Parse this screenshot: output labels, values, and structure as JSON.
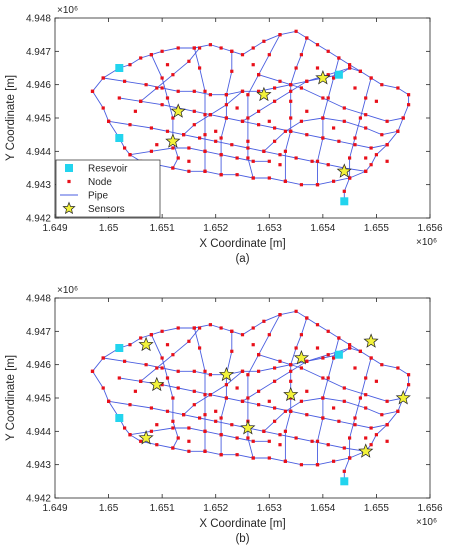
{
  "chart_data": [
    {
      "type": "scatter",
      "title": "",
      "caption": "(a)",
      "xlabel": "X Coordinate [m]",
      "ylabel": "Y Coordinate [m]",
      "x_exponent": "×10⁶",
      "y_exponent": "×10⁶",
      "xlim": [
        1.649,
        1.656
      ],
      "ylim": [
        4.942,
        4.948
      ],
      "x_ticks": [
        "1.649",
        "1.65",
        "1.651",
        "1.652",
        "1.653",
        "1.654",
        "1.655",
        "1.656"
      ],
      "y_ticks": [
        "4.942",
        "4.943",
        "4.944",
        "4.945",
        "4.946",
        "4.947",
        "4.948"
      ],
      "grid": false,
      "legend_position": "bottom-left",
      "legend": [
        {
          "label": "Resevoir",
          "marker": "square",
          "color": "#22d4ee"
        },
        {
          "label": "Node",
          "marker": "dot",
          "color": "#e8101a"
        },
        {
          "label": "Pipe",
          "marker": "line",
          "color": "#4a5ee0"
        },
        {
          "label": "Sensors",
          "marker": "star",
          "color": "#f2f23a"
        }
      ],
      "reservoirs": [
        [
          1.6502,
          4.9465
        ],
        [
          1.6502,
          4.9444
        ],
        [
          1.6543,
          4.9463
        ],
        [
          1.6544,
          4.9425
        ]
      ],
      "sensors": [
        [
          1.6513,
          4.9452
        ],
        [
          1.6512,
          4.9443
        ],
        [
          1.6529,
          4.9457
        ],
        [
          1.654,
          4.9462
        ],
        [
          1.6544,
          4.9434
        ]
      ]
    },
    {
      "type": "scatter",
      "title": "",
      "caption": "(b)",
      "xlabel": "X Coordinate [m]",
      "ylabel": "Y Coordinate [m]",
      "x_exponent": "×10⁶",
      "y_exponent": "×10⁶",
      "xlim": [
        1.649,
        1.656
      ],
      "ylim": [
        4.942,
        4.948
      ],
      "x_ticks": [
        "1.649",
        "1.65",
        "1.651",
        "1.652",
        "1.653",
        "1.654",
        "1.655",
        "1.656"
      ],
      "y_ticks": [
        "4.942",
        "4.943",
        "4.944",
        "4.945",
        "4.946",
        "4.947",
        "4.948"
      ],
      "grid": false,
      "reservoirs": [
        [
          1.6502,
          4.9465
        ],
        [
          1.6502,
          4.9444
        ],
        [
          1.6543,
          4.9463
        ],
        [
          1.6544,
          4.9425
        ]
      ],
      "sensors": [
        [
          1.6507,
          4.9466
        ],
        [
          1.6509,
          4.9454
        ],
        [
          1.6507,
          4.9438
        ],
        [
          1.6522,
          4.9457
        ],
        [
          1.6526,
          4.9441
        ],
        [
          1.6534,
          4.9451
        ],
        [
          1.6536,
          4.9462
        ],
        [
          1.6549,
          4.9467
        ],
        [
          1.6555,
          4.945
        ],
        [
          1.6548,
          4.9434
        ]
      ]
    }
  ],
  "network": {
    "lines": [
      [
        [
          1.6497,
          4.9458
        ],
        [
          1.6499,
          4.9462
        ],
        [
          1.6502,
          4.9465
        ],
        [
          1.6504,
          4.9466
        ],
        [
          1.6506,
          4.9468
        ],
        [
          1.6508,
          4.9469
        ],
        [
          1.651,
          4.947
        ],
        [
          1.6513,
          4.9471
        ],
        [
          1.6516,
          4.9471
        ],
        [
          1.6519,
          4.9472
        ],
        [
          1.6521,
          4.9471
        ],
        [
          1.6523,
          4.947
        ],
        [
          1.6525,
          4.9469
        ],
        [
          1.6527,
          4.9471
        ],
        [
          1.6529,
          4.9473
        ],
        [
          1.6532,
          4.9475
        ],
        [
          1.6535,
          4.9476
        ],
        [
          1.6537,
          4.9474
        ],
        [
          1.6539,
          4.9472
        ],
        [
          1.6541,
          4.947
        ],
        [
          1.6543,
          4.9468
        ],
        [
          1.6545,
          4.9466
        ],
        [
          1.6547,
          4.9464
        ],
        [
          1.6549,
          4.9462
        ],
        [
          1.6551,
          4.946
        ],
        [
          1.6554,
          4.9459
        ],
        [
          1.6556,
          4.9457
        ],
        [
          1.6556,
          4.9454
        ],
        [
          1.6555,
          4.945
        ],
        [
          1.6554,
          4.9446
        ],
        [
          1.6552,
          4.9442
        ],
        [
          1.655,
          4.9439
        ],
        [
          1.6549,
          4.9436
        ],
        [
          1.6548,
          4.9434
        ],
        [
          1.6545,
          4.9432
        ],
        [
          1.6542,
          4.9431
        ],
        [
          1.6539,
          4.943
        ],
        [
          1.6536,
          4.943
        ],
        [
          1.6533,
          4.9431
        ],
        [
          1.653,
          4.9432
        ],
        [
          1.6527,
          4.9432
        ],
        [
          1.6524,
          4.9433
        ],
        [
          1.6521,
          4.9433
        ],
        [
          1.6518,
          4.9434
        ],
        [
          1.6515,
          4.9434
        ],
        [
          1.6512,
          4.9435
        ],
        [
          1.6509,
          4.9436
        ],
        [
          1.6506,
          4.9437
        ],
        [
          1.6504,
          4.9439
        ],
        [
          1.6503,
          4.9441
        ],
        [
          1.6502,
          4.9444
        ]
      ],
      [
        [
          1.6497,
          4.9458
        ],
        [
          1.6499,
          4.9453
        ],
        [
          1.65,
          4.9449
        ],
        [
          1.6502,
          4.9444
        ]
      ],
      [
        [
          1.6502,
          4.9456
        ],
        [
          1.6506,
          4.9455
        ],
        [
          1.651,
          4.9454
        ],
        [
          1.6513,
          4.9453
        ],
        [
          1.6516,
          4.9452
        ],
        [
          1.6519,
          4.9451
        ],
        [
          1.6522,
          4.945
        ],
        [
          1.6525,
          4.9449
        ],
        [
          1.6528,
          4.9448
        ],
        [
          1.6531,
          4.9447
        ],
        [
          1.6534,
          4.9446
        ],
        [
          1.6537,
          4.9445
        ],
        [
          1.654,
          4.9444
        ],
        [
          1.6543,
          4.9443
        ],
        [
          1.6546,
          4.9442
        ],
        [
          1.6549,
          4.9441
        ],
        [
          1.6552,
          4.9442
        ]
      ],
      [
        [
          1.6499,
          4.9462
        ],
        [
          1.6503,
          4.9461
        ],
        [
          1.6507,
          4.946
        ],
        [
          1.651,
          4.9459
        ],
        [
          1.6513,
          4.9458
        ],
        [
          1.6516,
          4.9458
        ],
        [
          1.6519,
          4.9457
        ],
        [
          1.6522,
          4.9457
        ],
        [
          1.6525,
          4.9458
        ],
        [
          1.6528,
          4.9458
        ],
        [
          1.6531,
          4.9459
        ],
        [
          1.6534,
          4.946
        ],
        [
          1.6537,
          4.9461
        ],
        [
          1.654,
          4.9462
        ],
        [
          1.6543,
          4.9463
        ],
        [
          1.6545,
          4.9465
        ],
        [
          1.6547,
          4.9464
        ]
      ],
      [
        [
          1.65,
          4.9449
        ],
        [
          1.6504,
          4.9448
        ],
        [
          1.6508,
          4.9447
        ],
        [
          1.6511,
          4.9446
        ],
        [
          1.6514,
          4.9445
        ],
        [
          1.6517,
          4.9444
        ],
        [
          1.652,
          4.9443
        ],
        [
          1.6523,
          4.9442
        ],
        [
          1.6526,
          4.9441
        ],
        [
          1.6529,
          4.944
        ],
        [
          1.6532,
          4.9439
        ],
        [
          1.6535,
          4.9438
        ],
        [
          1.6538,
          4.9437
        ],
        [
          1.6541,
          4.9436
        ],
        [
          1.6544,
          4.9435
        ],
        [
          1.6548,
          4.9434
        ]
      ],
      [
        [
          1.6504,
          4.9439
        ],
        [
          1.6508,
          4.944
        ],
        [
          1.6512,
          4.9441
        ],
        [
          1.6515,
          4.9441
        ],
        [
          1.6518,
          4.944
        ],
        [
          1.6521,
          4.9439
        ],
        [
          1.6524,
          4.9438
        ],
        [
          1.6527,
          4.9437
        ],
        [
          1.653,
          4.9437
        ]
      ],
      [
        [
          1.6508,
          4.9469
        ],
        [
          1.651,
          4.9462
        ],
        [
          1.6511,
          4.9456
        ],
        [
          1.6512,
          4.945
        ],
        [
          1.6512,
          4.9443
        ],
        [
          1.6513,
          4.9438
        ],
        [
          1.6512,
          4.9435
        ]
      ],
      [
        [
          1.6516,
          4.9471
        ],
        [
          1.6517,
          4.9465
        ],
        [
          1.6518,
          4.9458
        ],
        [
          1.6518,
          4.9451
        ],
        [
          1.6518,
          4.9445
        ],
        [
          1.6518,
          4.944
        ],
        [
          1.6518,
          4.9434
        ]
      ],
      [
        [
          1.6523,
          4.947
        ],
        [
          1.6523,
          4.9464
        ],
        [
          1.6522,
          4.9457
        ],
        [
          1.6522,
          4.945
        ],
        [
          1.6521,
          4.9444
        ],
        [
          1.6521,
          4.9439
        ],
        [
          1.6521,
          4.9433
        ]
      ],
      [
        [
          1.6532,
          4.9475
        ],
        [
          1.653,
          4.9469
        ],
        [
          1.6528,
          4.9463
        ],
        [
          1.6526,
          4.9457
        ],
        [
          1.6526,
          4.945
        ],
        [
          1.6526,
          4.9443
        ],
        [
          1.6526,
          4.9438
        ],
        [
          1.6527,
          4.9432
        ]
      ],
      [
        [
          1.6537,
          4.9474
        ],
        [
          1.6536,
          4.9469
        ],
        [
          1.6535,
          4.9465
        ],
        [
          1.6534,
          4.946
        ],
        [
          1.6534,
          4.9455
        ],
        [
          1.6534,
          4.945
        ],
        [
          1.6534,
          4.9446
        ],
        [
          1.6533,
          4.944
        ],
        [
          1.6533,
          4.9431
        ]
      ],
      [
        [
          1.6543,
          4.9468
        ],
        [
          1.6542,
          4.9462
        ],
        [
          1.6541,
          4.9456
        ],
        [
          1.654,
          4.945
        ],
        [
          1.654,
          4.9444
        ],
        [
          1.6539,
          4.9437
        ],
        [
          1.6539,
          4.943
        ]
      ],
      [
        [
          1.6549,
          4.9462
        ],
        [
          1.6548,
          4.9456
        ],
        [
          1.6547,
          4.945
        ],
        [
          1.6546,
          4.9444
        ],
        [
          1.6545,
          4.9438
        ],
        [
          1.6545,
          4.9432
        ]
      ],
      [
        [
          1.6528,
          4.9463
        ],
        [
          1.6532,
          4.9461
        ],
        [
          1.6536,
          4.9459
        ],
        [
          1.654,
          4.9456
        ],
        [
          1.6544,
          4.9453
        ],
        [
          1.6548,
          4.9451
        ],
        [
          1.6552,
          4.9449
        ],
        [
          1.6555,
          4.945
        ]
      ],
      [
        [
          1.6525,
          4.9449
        ],
        [
          1.6528,
          4.9452
        ],
        [
          1.6531,
          4.9455
        ],
        [
          1.6534,
          4.9458
        ],
        [
          1.6537,
          4.9461
        ],
        [
          1.6541,
          4.9463
        ],
        [
          1.6545,
          4.9465
        ]
      ],
      [
        [
          1.6514,
          4.9445
        ],
        [
          1.6516,
          4.9448
        ],
        [
          1.6519,
          4.9451
        ],
        [
          1.6522,
          4.9454
        ],
        [
          1.6525,
          4.9458
        ]
      ],
      [
        [
          1.6506,
          4.9455
        ],
        [
          1.6509,
          4.9459
        ],
        [
          1.6512,
          4.9463
        ],
        [
          1.6515,
          4.9467
        ],
        [
          1.6517,
          4.9471
        ]
      ],
      [
        [
          1.6529,
          4.944
        ],
        [
          1.6531,
          4.9443
        ],
        [
          1.6533,
          4.9446
        ],
        [
          1.6536,
          4.9449
        ],
        [
          1.654,
          4.945
        ],
        [
          1.6544,
          4.9449
        ],
        [
          1.6548,
          4.9447
        ],
        [
          1.6551,
          4.9445
        ],
        [
          1.6554,
          4.9446
        ]
      ],
      [
        [
          1.6544,
          4.9425
        ],
        [
          1.6544,
          4.9428
        ],
        [
          1.6545,
          4.9432
        ]
      ]
    ],
    "extra_nodes": [
      [
        1.6509,
        4.9442
      ],
      [
        1.6515,
        4.9437
      ],
      [
        1.652,
        4.9446
      ],
      [
        1.6524,
        4.9453
      ],
      [
        1.653,
        4.9449
      ],
      [
        1.6537,
        4.9452
      ],
      [
        1.6542,
        4.9447
      ],
      [
        1.6546,
        4.9459
      ],
      [
        1.655,
        4.9455
      ],
      [
        1.6552,
        4.9437
      ],
      [
        1.6505,
        4.9452
      ],
      [
        1.6511,
        4.9466
      ],
      [
        1.6527,
        4.9466
      ],
      [
        1.6532,
        4.9436
      ],
      [
        1.6539,
        4.9465
      ],
      [
        1.6548,
        4.9438
      ]
    ]
  }
}
